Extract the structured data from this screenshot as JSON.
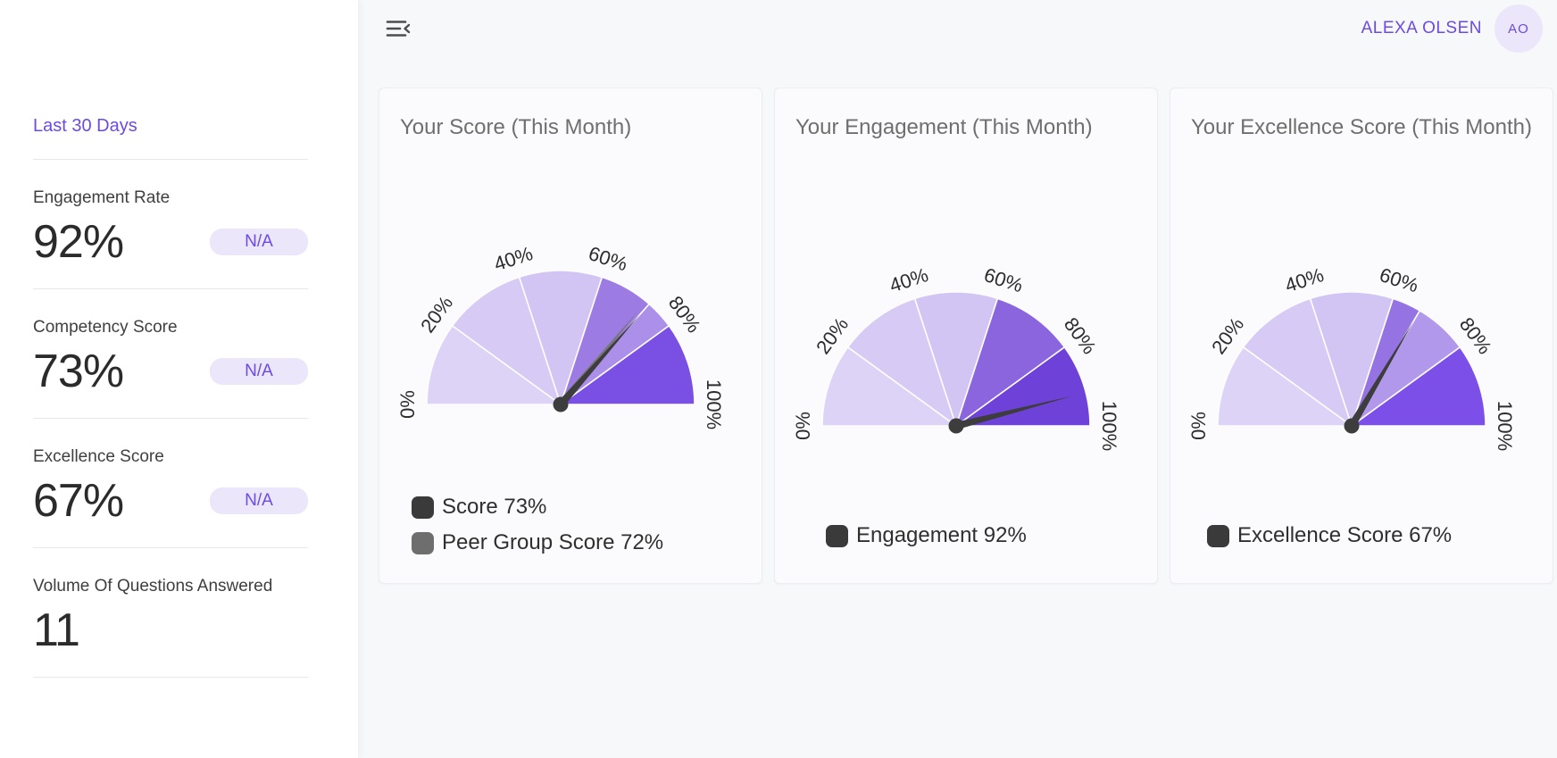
{
  "header": {
    "menu_icon": "menu-collapse",
    "user_name": "ALEXA OLSEN",
    "avatar_initials": "AO"
  },
  "sidebar": {
    "period_label": "Last 30 Days",
    "stats": [
      {
        "label": "Engagement Rate",
        "value": "92%",
        "badge": "N/A"
      },
      {
        "label": "Competency Score",
        "value": "73%",
        "badge": "N/A"
      },
      {
        "label": "Excellence Score",
        "value": "67%",
        "badge": "N/A"
      },
      {
        "label": "Volume Of Questions Answered",
        "value": "11",
        "badge": ""
      }
    ]
  },
  "colors": {
    "accent_purple": "#6c4ae3",
    "badge_bg": "#ece6fb",
    "card_bg": "#fbfbfd",
    "main_bg": "#f7f8fa",
    "needle_dark": "#3d3d3d",
    "needle_gray": "#777777"
  },
  "chart_data": [
    {
      "type": "gauge",
      "title": "Your Score (This Month)",
      "min": 0,
      "max": 100,
      "axis_ticks": [
        "0%",
        "20%",
        "40%",
        "60%",
        "80%",
        "100%"
      ],
      "segments": [
        {
          "from": 0,
          "to": 20,
          "color": "#dcd3f7"
        },
        {
          "from": 20,
          "to": 40,
          "color": "#d7cbf5"
        },
        {
          "from": 40,
          "to": 60,
          "color": "#d2c4f3"
        },
        {
          "from": 60,
          "to": 73,
          "color": "#9c7ce3"
        },
        {
          "from": 73,
          "to": 80,
          "color": "#ab8fe8"
        },
        {
          "from": 80,
          "to": 100,
          "color": "#7a4fe4"
        }
      ],
      "needles": [
        {
          "name": "Peer Group Score",
          "value": 72,
          "color": "#777777"
        },
        {
          "name": "Score",
          "value": 73,
          "color": "#3d3d3d"
        }
      ],
      "legend": [
        {
          "label": "Score 73%",
          "color": "#3a3a3a"
        },
        {
          "label": "Peer Group Score 72%",
          "color": "#6e6e6e"
        }
      ],
      "legend_position": "bottom-left"
    },
    {
      "type": "gauge",
      "title": "Your Engagement (This Month)",
      "min": 0,
      "max": 100,
      "axis_ticks": [
        "0%",
        "20%",
        "40%",
        "60%",
        "80%",
        "100%"
      ],
      "segments": [
        {
          "from": 0,
          "to": 20,
          "color": "#dcd3f7"
        },
        {
          "from": 20,
          "to": 40,
          "color": "#d7cbf5"
        },
        {
          "from": 40,
          "to": 60,
          "color": "#d2c4f3"
        },
        {
          "from": 60,
          "to": 80,
          "color": "#8b65de"
        },
        {
          "from": 80,
          "to": 100,
          "color": "#6e42d8"
        }
      ],
      "needles": [
        {
          "name": "Engagement",
          "value": 92,
          "color": "#3d3d3d"
        }
      ],
      "legend": [
        {
          "label": "Engagement 92%",
          "color": "#3a3a3a"
        }
      ],
      "legend_position": "bottom-left"
    },
    {
      "type": "gauge",
      "title": "Your Excellence Score (This Month)",
      "min": 0,
      "max": 100,
      "axis_ticks": [
        "0%",
        "20%",
        "40%",
        "60%",
        "80%",
        "100%"
      ],
      "segments": [
        {
          "from": 0,
          "to": 20,
          "color": "#dcd3f7"
        },
        {
          "from": 20,
          "to": 40,
          "color": "#d7cbf5"
        },
        {
          "from": 40,
          "to": 60,
          "color": "#d2c4f3"
        },
        {
          "from": 60,
          "to": 67,
          "color": "#9673e2"
        },
        {
          "from": 67,
          "to": 80,
          "color": "#b298eb"
        },
        {
          "from": 80,
          "to": 100,
          "color": "#7b4fe8"
        }
      ],
      "needles": [
        {
          "name": "Excellence Score",
          "value": 67,
          "color": "#3d3d3d"
        }
      ],
      "legend": [
        {
          "label": "Excellence Score 67%",
          "color": "#3a3a3a"
        }
      ],
      "legend_position": "bottom-left"
    }
  ]
}
